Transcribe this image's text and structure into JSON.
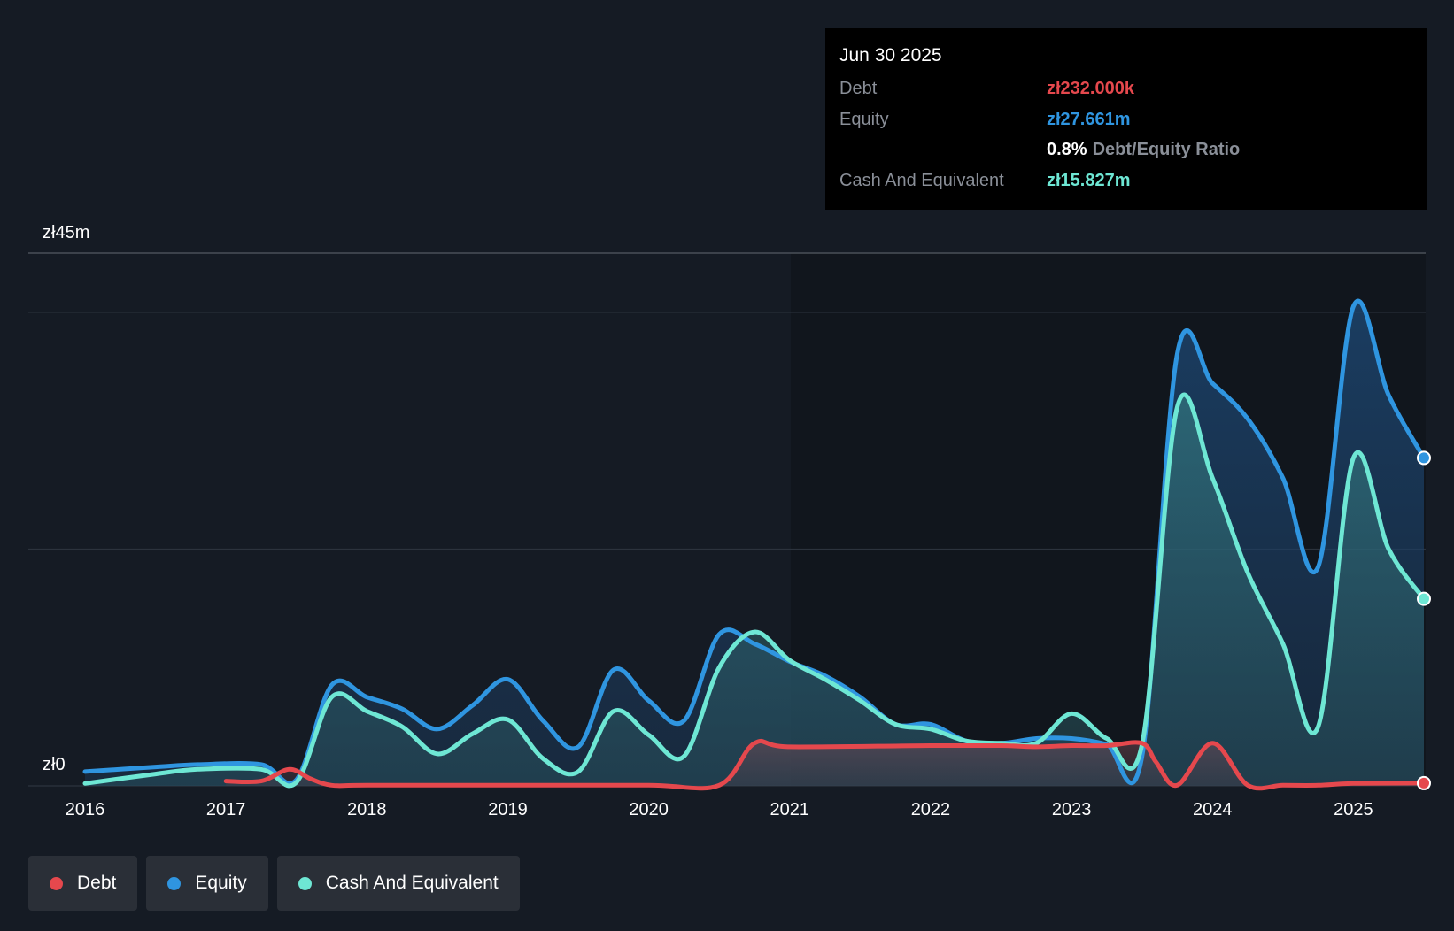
{
  "tooltip": {
    "date": "Jun 30 2025",
    "debt_label": "Debt",
    "debt_value": "zł232.000k",
    "equity_label": "Equity",
    "equity_value": "zł27.661m",
    "ratio_value": "0.8%",
    "ratio_label": "Debt/Equity Ratio",
    "cash_label": "Cash And Equivalent",
    "cash_value": "zł15.827m"
  },
  "legend": [
    {
      "label": "Debt",
      "color": "#e5484d"
    },
    {
      "label": "Equity",
      "color": "#2f95e0"
    },
    {
      "label": "Cash And Equivalent",
      "color": "#6ee7d4"
    }
  ],
  "colors": {
    "debt": "#e5484d",
    "equity": "#2f95e0",
    "cash": "#6ee7d4",
    "background": "#151b24"
  },
  "chart_data": {
    "type": "area",
    "title": "",
    "ylabel_top": "zł45m",
    "ylabel_bottom": "zł0",
    "ylim": [
      0,
      45
    ],
    "xlim": [
      2016,
      2025.5
    ],
    "x_ticks": [
      "2016",
      "2017",
      "2018",
      "2019",
      "2020",
      "2021",
      "2022",
      "2023",
      "2024",
      "2025"
    ],
    "gridlines": [
      0,
      20,
      40,
      45
    ],
    "series": [
      {
        "name": "Equity",
        "x": [
          2016,
          2016.5,
          2016.8,
          2017.25,
          2017.5,
          2017.75,
          2018.0,
          2018.25,
          2018.5,
          2018.75,
          2019.0,
          2019.25,
          2019.5,
          2019.75,
          2020.0,
          2020.25,
          2020.5,
          2020.75,
          2021.0,
          2021.25,
          2021.5,
          2021.75,
          2022.0,
          2022.25,
          2022.5,
          2022.75,
          2023.0,
          2023.25,
          2023.5,
          2023.75,
          2024.0,
          2024.25,
          2024.5,
          2024.75,
          2025.0,
          2025.25,
          2025.5
        ],
        "values": [
          1.2,
          1.6,
          1.8,
          1.8,
          0.5,
          8.5,
          7.5,
          6.5,
          4.8,
          6.8,
          9.0,
          5.5,
          3.3,
          9.8,
          7.2,
          5.5,
          12.8,
          12.0,
          10.5,
          9.3,
          7.5,
          5.2,
          5.2,
          3.8,
          3.6,
          4.0,
          4.0,
          3.5,
          2.5,
          36.5,
          34.0,
          31.0,
          26.0,
          18.5,
          40.5,
          33.0,
          27.7
        ]
      },
      {
        "name": "Cash And Equivalent",
        "x": [
          2016,
          2016.5,
          2016.8,
          2017.25,
          2017.5,
          2017.75,
          2018.0,
          2018.25,
          2018.5,
          2018.75,
          2019.0,
          2019.25,
          2019.5,
          2019.75,
          2020.0,
          2020.25,
          2020.5,
          2020.75,
          2021.0,
          2021.25,
          2021.5,
          2021.75,
          2022.0,
          2022.25,
          2022.5,
          2022.75,
          2023.0,
          2023.25,
          2023.5,
          2023.75,
          2024.0,
          2024.25,
          2024.5,
          2024.75,
          2025.0,
          2025.25,
          2025.5
        ],
        "values": [
          0.2,
          1.0,
          1.4,
          1.4,
          0.3,
          7.5,
          6.3,
          5.0,
          2.7,
          4.4,
          5.6,
          2.3,
          1.2,
          6.3,
          4.3,
          2.5,
          10.0,
          13.0,
          10.6,
          9.0,
          7.2,
          5.2,
          4.8,
          3.8,
          3.6,
          3.6,
          6.1,
          4.0,
          3.5,
          32.0,
          26.0,
          18.0,
          12.0,
          5.0,
          27.7,
          20.0,
          15.8
        ]
      },
      {
        "name": "Debt",
        "x": [
          2017.0,
          2017.25,
          2017.45,
          2017.6,
          2017.75,
          2018.0,
          2019.0,
          2020.0,
          2020.5,
          2020.75,
          2021.0,
          2022.0,
          2022.5,
          2022.75,
          2023.0,
          2023.25,
          2023.5,
          2023.6,
          2023.75,
          2024.0,
          2024.25,
          2024.5,
          2024.75,
          2025.0,
          2025.5
        ],
        "values": [
          0.4,
          0.4,
          1.4,
          0.6,
          0.05,
          0.05,
          0.05,
          0.05,
          0.05,
          3.6,
          3.3,
          3.4,
          3.4,
          3.3,
          3.4,
          3.4,
          3.6,
          2.0,
          0.05,
          3.6,
          0.05,
          0.05,
          0.05,
          0.2,
          0.23
        ]
      }
    ],
    "legend_position": "bottom-left"
  }
}
